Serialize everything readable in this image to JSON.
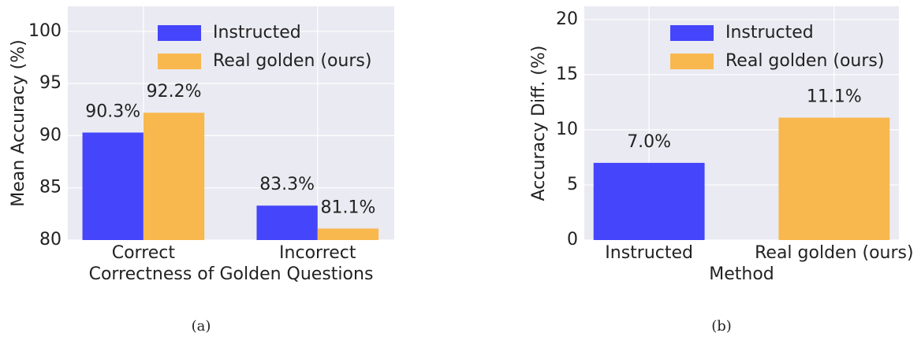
{
  "chart_data": [
    {
      "type": "bar",
      "caption": "(a)",
      "y_label": "Mean Accuracy (%)",
      "x_label": "Correctness of Golden Questions",
      "categories": [
        "Correct",
        "Incorrect"
      ],
      "series": [
        {
          "name": "Instructed",
          "color": "#4545fb",
          "values": [
            90.3,
            83.3
          ],
          "value_labels": [
            "90.3%",
            "83.3%"
          ]
        },
        {
          "name": "Real golden (ours)",
          "color": "#f8b84e",
          "values": [
            92.2,
            81.1
          ],
          "value_labels": [
            "92.2%",
            "81.1%"
          ]
        }
      ],
      "ylim": [
        80,
        102.4
      ],
      "yticks": [
        80,
        85,
        90,
        95,
        100
      ],
      "grid": true,
      "legend": "upper center"
    },
    {
      "type": "bar",
      "caption": "(b)",
      "y_label": "Accuracy Diff. (%)",
      "x_label": "Method",
      "categories": [
        "Instructed",
        "Real golden (ours)"
      ],
      "series": [
        {
          "name": "Instructed",
          "color": "#4545fb",
          "values": [
            7.0,
            null
          ],
          "value_labels": [
            "7.0%",
            null
          ]
        },
        {
          "name": "Real golden (ours)",
          "color": "#f8b84e",
          "values": [
            null,
            11.1
          ],
          "value_labels": [
            null,
            "11.1%"
          ]
        }
      ],
      "ylim": [
        0,
        21.2
      ],
      "yticks": [
        0,
        5,
        10,
        15,
        20
      ],
      "grid": true,
      "legend": "upper center"
    }
  ]
}
